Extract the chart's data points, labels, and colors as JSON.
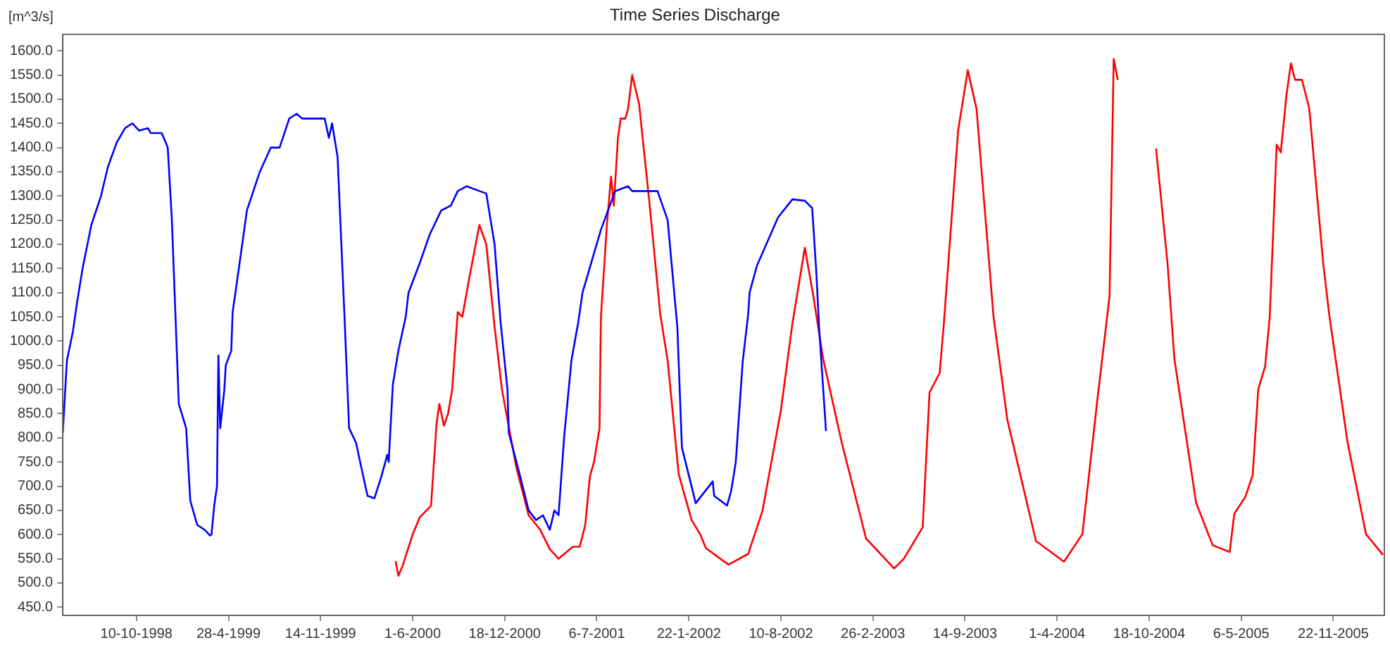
{
  "chart_data": {
    "type": "line",
    "title": "Time Series Discharge",
    "ylabel": "[m^3/s]",
    "xlim": [
      "1998-05-03",
      "2006-03-13"
    ],
    "ylim": [
      433,
      1634
    ],
    "xticks": [
      {
        "value": "1998-10-10",
        "label": "10-10-1998"
      },
      {
        "value": "1999-04-28",
        "label": "28-4-1999"
      },
      {
        "value": "1999-11-14",
        "label": "14-11-1999"
      },
      {
        "value": "2000-06-01",
        "label": "1-6-2000"
      },
      {
        "value": "2000-12-18",
        "label": "18-12-2000"
      },
      {
        "value": "2001-07-06",
        "label": "6-7-2001"
      },
      {
        "value": "2002-01-22",
        "label": "22-1-2002"
      },
      {
        "value": "2002-08-10",
        "label": "10-8-2002"
      },
      {
        "value": "2003-02-26",
        "label": "26-2-2003"
      },
      {
        "value": "2003-09-14",
        "label": "14-9-2003"
      },
      {
        "value": "2004-04-01",
        "label": "1-4-2004"
      },
      {
        "value": "2004-10-18",
        "label": "18-10-2004"
      },
      {
        "value": "2005-05-06",
        "label": "6-5-2005"
      },
      {
        "value": "2005-11-22",
        "label": "22-11-2005"
      }
    ],
    "yticks": [
      {
        "value": 450,
        "label": "450.0"
      },
      {
        "value": 500,
        "label": "500.0"
      },
      {
        "value": 550,
        "label": "550.0"
      },
      {
        "value": 600,
        "label": "600.0"
      },
      {
        "value": 650,
        "label": "650.0"
      },
      {
        "value": 700,
        "label": "700.0"
      },
      {
        "value": 750,
        "label": "750.0"
      },
      {
        "value": 800,
        "label": "800.0"
      },
      {
        "value": 850,
        "label": "850.0"
      },
      {
        "value": 900,
        "label": "900.0"
      },
      {
        "value": 950,
        "label": "950.0"
      },
      {
        "value": 1000,
        "label": "1000.0"
      },
      {
        "value": 1050,
        "label": "1050.0"
      },
      {
        "value": 1100,
        "label": "1100.0"
      },
      {
        "value": 1150,
        "label": "1150.0"
      },
      {
        "value": 1200,
        "label": "1200.0"
      },
      {
        "value": 1250,
        "label": "1250.0"
      },
      {
        "value": 1300,
        "label": "1300.0"
      },
      {
        "value": 1350,
        "label": "1350.0"
      },
      {
        "value": 1400,
        "label": "1400.0"
      },
      {
        "value": 1450,
        "label": "1450.0"
      },
      {
        "value": 1500,
        "label": "1500.0"
      },
      {
        "value": 1550,
        "label": "1550.0"
      },
      {
        "value": 1600,
        "label": "1600.0"
      }
    ],
    "series": [
      {
        "color": "#0000ff",
        "x": [
          "1998-05-03",
          "1998-05-12",
          "1998-05-25",
          "1998-06-03",
          "1998-06-15",
          "1998-07-04",
          "1998-07-25",
          "1998-08-09",
          "1998-08-28",
          "1998-09-15",
          "1998-10-01",
          "1998-10-16",
          "1998-11-04",
          "1998-11-10",
          "1998-12-04",
          "1998-12-17",
          "1998-12-26",
          "1999-01-10",
          "1999-01-26",
          "1999-02-04",
          "1999-02-19",
          "1999-03-07",
          "1999-03-19",
          "1999-03-22",
          "1999-03-28",
          "1999-04-03",
          "1999-04-06",
          "1999-04-10",
          "1999-04-19",
          "1999-04-22",
          "1999-05-04",
          "1999-05-07",
          "1999-05-16",
          "1999-06-07",
          "1999-07-05",
          "1999-07-29",
          "1999-08-17",
          "1999-09-07",
          "1999-09-23",
          "1999-10-05",
          "1999-11-23",
          "1999-12-02",
          "1999-12-09",
          "1999-12-21",
          "2000-01-05",
          "2000-01-15",
          "2000-01-30",
          "2000-02-08",
          "2000-02-24",
          "2000-03-10",
          "2000-03-25",
          "2000-04-07",
          "2000-04-10",
          "2000-04-19",
          "2000-05-01",
          "2000-05-17",
          "2000-05-23",
          "2000-06-16",
          "2000-07-08",
          "2000-08-02",
          "2000-08-23",
          "2000-09-07",
          "2000-09-26",
          "2000-11-08",
          "2000-11-26",
          "2000-12-09",
          "2000-12-24",
          "2000-12-27",
          "2001-01-18",
          "2001-02-08",
          "2001-02-24",
          "2001-03-11",
          "2001-03-26",
          "2001-04-05",
          "2001-04-14",
          "2001-04-26",
          "2001-05-12",
          "2001-05-27",
          "2001-06-05",
          "2001-07-15",
          "2001-08-15",
          "2001-09-12",
          "2001-09-21",
          "2001-11-15",
          "2001-12-07",
          "2001-12-28",
          "2002-01-07",
          "2002-02-06",
          "2002-03-15",
          "2002-03-18",
          "2002-04-15",
          "2002-04-24",
          "2002-05-04",
          "2002-05-19",
          "2002-05-31",
          "2002-06-03",
          "2002-06-19",
          "2002-08-04",
          "2002-09-04",
          "2002-10-01",
          "2002-10-17",
          "2002-10-26",
          "2002-11-01",
          "2002-11-16"
        ],
        "values": [
          810,
          960,
          1020,
          1080,
          1150,
          1240,
          1300,
          1360,
          1410,
          1440,
          1450,
          1435,
          1440,
          1430,
          1430,
          1400,
          1250,
          870,
          820,
          670,
          620,
          610,
          598,
          600,
          660,
          700,
          970,
          820,
          900,
          950,
          980,
          1060,
          1120,
          1270,
          1350,
          1400,
          1400,
          1460,
          1470,
          1460,
          1460,
          1420,
          1450,
          1380,
          1050,
          820,
          790,
          750,
          680,
          675,
          720,
          765,
          750,
          910,
          980,
          1050,
          1100,
          1160,
          1220,
          1270,
          1280,
          1310,
          1320,
          1305,
          1200,
          1040,
          900,
          810,
          730,
          650,
          630,
          640,
          610,
          650,
          640,
          800,
          960,
          1040,
          1100,
          1230,
          1310,
          1320,
          1310,
          1310,
          1250,
          1030,
          780,
          665,
          710,
          680,
          660,
          690,
          750,
          957,
          1056,
          1100,
          1156,
          1256,
          1293,
          1290,
          1275,
          1142,
          1028,
          814
        ]
      },
      {
        "color": "#ff0000",
        "x": [
          "2000-04-25",
          "2000-05-01",
          "2000-05-10",
          "2000-06-01",
          "2000-06-16",
          "2000-07-11",
          "2000-07-23",
          "2000-07-29",
          "2000-08-08",
          "2000-08-17",
          "2000-08-26",
          "2000-09-07",
          "2000-09-17",
          "2000-10-02",
          "2000-10-24",
          "2000-11-08",
          "2000-11-26",
          "2000-12-12",
          "2001-01-12",
          "2001-02-08",
          "2001-03-05",
          "2001-03-26",
          "2001-04-14",
          "2001-05-15",
          "2001-05-30",
          "2001-06-11",
          "2001-06-21",
          "2001-06-30",
          "2001-07-12",
          "2001-07-15",
          "2001-07-28",
          "2001-08-06",
          "2001-08-12",
          "2001-08-21",
          "2001-08-27",
          "2001-09-06",
          "2001-09-12",
          "2001-09-21",
          "2001-10-06",
          "2001-10-28",
          "2001-11-21",
          "2001-12-07",
          "2001-12-31",
          "2002-01-28",
          "2002-02-16",
          "2002-02-28",
          "2002-04-18",
          "2002-05-31",
          "2002-07-01",
          "2002-08-10",
          "2002-09-04",
          "2002-10-01",
          "2002-10-20",
          "2002-11-10",
          "2002-12-20",
          "2003-02-11",
          "2003-04-13",
          "2003-05-04",
          "2003-06-14",
          "2003-06-29",
          "2003-07-21",
          "2003-07-30",
          "2003-08-30",
          "2003-09-20",
          "2003-10-09",
          "2003-11-15",
          "2003-12-15",
          "2004-02-15",
          "2004-04-16",
          "2004-05-26",
          "2004-06-26",
          "2004-07-24",
          "2004-08-02",
          "2004-08-11",
          "2004-08-21",
          "2004-09-17",
          "2004-10-12",
          "2004-11-02",
          "2004-11-27",
          "2004-12-12",
          "2005-01-28",
          "2005-03-05",
          "2005-04-11",
          "2005-04-21",
          "2005-05-15",
          "2005-05-31",
          "2005-06-12",
          "2005-06-27",
          "2005-07-07",
          "2005-07-22",
          "2005-07-31",
          "2005-08-12",
          "2005-08-22",
          "2005-08-31",
          "2005-09-15",
          "2005-10-01",
          "2005-10-31",
          "2005-11-13",
          "2005-12-23",
          "2006-02-01",
          "2006-03-10"
        ],
        "values": [
          545,
          515,
          535,
          600,
          635,
          660,
          830,
          870,
          825,
          850,
          900,
          1060,
          1050,
          1130,
          1240,
          1200,
          1030,
          900,
          740,
          640,
          610,
          570,
          550,
          575,
          575,
          620,
          720,
          750,
          820,
          1050,
          1240,
          1340,
          1280,
          1420,
          1460,
          1460,
          1480,
          1550,
          1490,
          1290,
          1055,
          960,
          725,
          630,
          600,
          572,
          538,
          560,
          649,
          857,
          1036,
          1193,
          1090,
          962,
          791,
          592,
          530,
          550,
          615,
          894,
          934,
          1036,
          1435,
          1560,
          1480,
          1050,
          837,
          587,
          544,
          601,
          866,
          1093,
          1583,
          1540,
          null,
          null,
          null,
          1398,
          1160,
          962,
          666,
          578,
          564,
          643,
          678,
          723,
          900,
          948,
          1050,
          1406,
          1390,
          1506,
          1574,
          1540,
          1540,
          1480,
          1162,
          1056,
          791,
          601,
          558
        ]
      }
    ]
  }
}
